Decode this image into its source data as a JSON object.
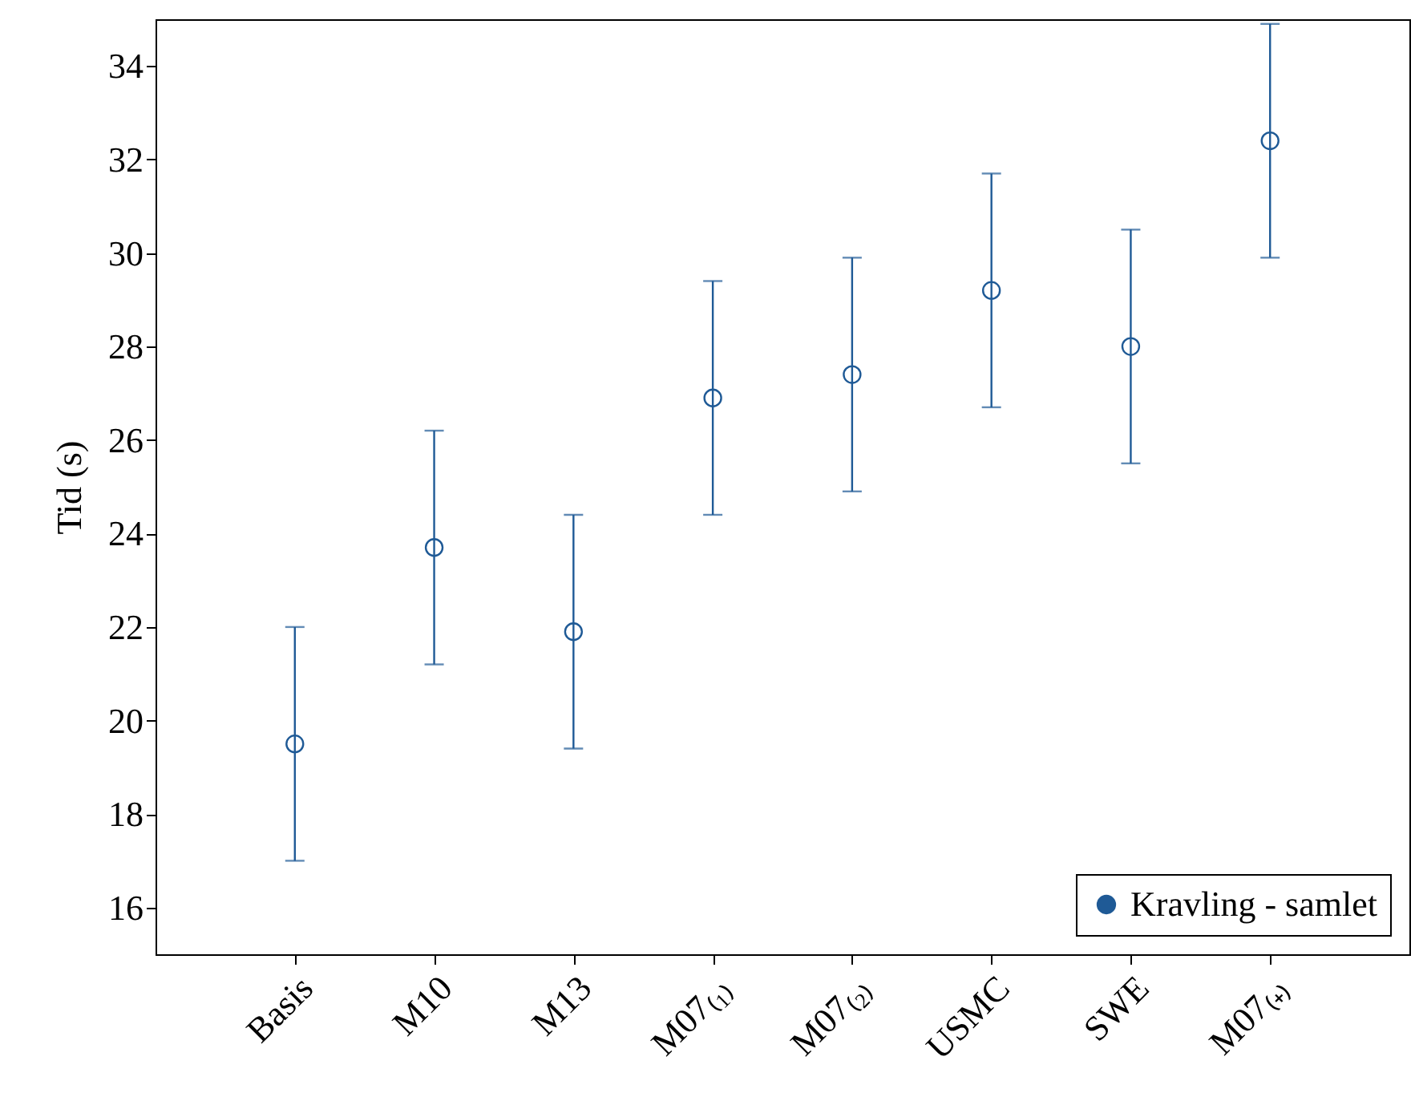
{
  "chart_data": {
    "type": "scatter",
    "ylabel": "Tid (s)",
    "categories": [
      "Basis",
      "M10",
      "M13",
      "M07₍₁₎",
      "M07₍₂₎",
      "USMC",
      "SWE",
      "M07₍₊₎"
    ],
    "series": [
      {
        "name": "Kravling - samlet",
        "color": "#1f5a96",
        "values": [
          19.5,
          23.7,
          21.9,
          26.9,
          27.4,
          29.2,
          28.0,
          32.4
        ],
        "errors": [
          2.5,
          2.5,
          2.5,
          2.5,
          2.5,
          2.5,
          2.5,
          2.5
        ]
      }
    ],
    "ylim": [
      15,
      35
    ],
    "yticks": [
      16,
      18,
      20,
      22,
      24,
      26,
      28,
      30,
      32,
      34
    ],
    "grid": false,
    "legend": "bottom right",
    "marker": "circle"
  }
}
